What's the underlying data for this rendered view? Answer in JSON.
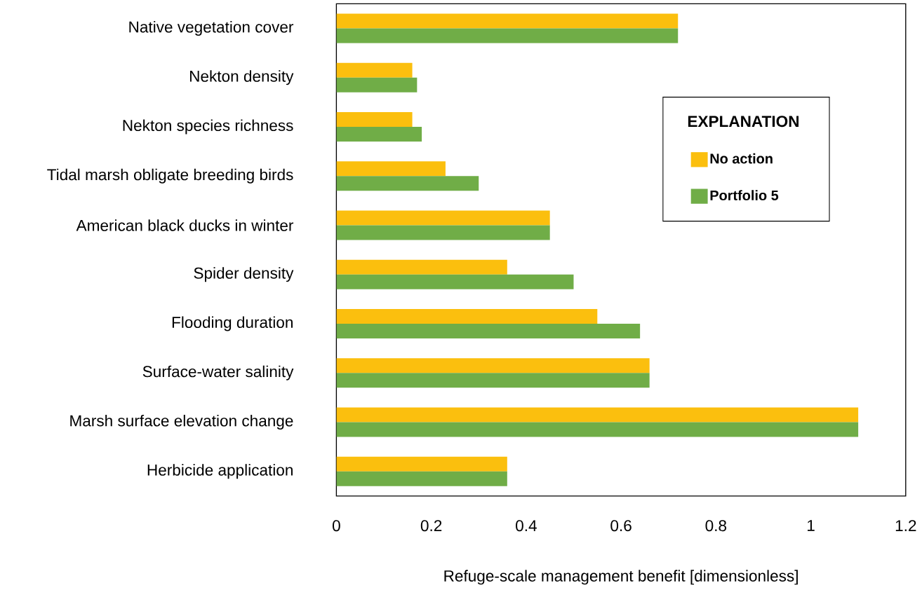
{
  "chart_data": {
    "type": "bar",
    "orientation": "horizontal",
    "xlabel": "Refuge-scale management benefit [dimensionless]",
    "legend_title": "EXPLANATION",
    "legend": "top right",
    "grid": false,
    "categories": [
      "Native vegetation cover",
      "Nekton density",
      "Nekton species richness",
      "Tidal marsh obligate breeding birds",
      "American black ducks in winter",
      "Spider density",
      "Flooding duration",
      "Surface-water salinity",
      "Marsh surface elevation change",
      "Herbicide application"
    ],
    "series": [
      {
        "name": "No action",
        "color": "#fbbf0e",
        "values": [
          0.72,
          0.16,
          0.16,
          0.23,
          0.45,
          0.36,
          0.55,
          0.66,
          1.1,
          0.36
        ]
      },
      {
        "name": "Portfolio 5",
        "color": "#70ad47",
        "values": [
          0.72,
          0.17,
          0.18,
          0.3,
          0.45,
          0.5,
          0.64,
          0.66,
          1.1,
          0.36
        ]
      }
    ],
    "xlim": [
      0,
      1.2
    ],
    "xticks": [
      0,
      0.2,
      0.4,
      0.6,
      0.8,
      1,
      1.2
    ]
  }
}
